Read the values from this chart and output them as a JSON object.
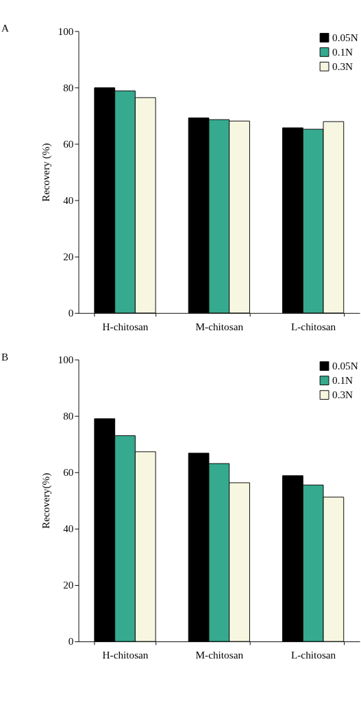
{
  "chart_data": [
    {
      "type": "bar",
      "title": "A",
      "ylabel": "Recovery (%)",
      "categories": [
        "H-chitosan",
        "M-chitosan",
        "L-chitosan"
      ],
      "series": [
        {
          "name": "0.05N",
          "color": "#000000",
          "values": [
            79.9,
            69.2,
            65.7
          ]
        },
        {
          "name": "0.1N",
          "color": "#35aa8f",
          "values": [
            78.8,
            68.6,
            65.2
          ]
        },
        {
          "name": "0.3N",
          "color": "#f7f7e1",
          "values": [
            76.4,
            68.1,
            67.9
          ]
        }
      ],
      "ylim": [
        0,
        100
      ],
      "yticks": [
        0,
        20,
        40,
        60,
        80,
        100
      ],
      "grid": false,
      "legend": "top right"
    },
    {
      "type": "bar",
      "title": "B",
      "ylabel": "Recovery(%)",
      "categories": [
        "H-chitosan",
        "M-chitosan",
        "L-chitosan"
      ],
      "series": [
        {
          "name": "0.05N",
          "color": "#000000",
          "values": [
            79.0,
            66.8,
            58.8
          ]
        },
        {
          "name": "0.1N",
          "color": "#35aa8f",
          "values": [
            73.0,
            63.1,
            55.5
          ]
        },
        {
          "name": "0.3N",
          "color": "#f7f7e1",
          "values": [
            67.3,
            56.3,
            51.2
          ]
        }
      ],
      "ylim": [
        0,
        100
      ],
      "yticks": [
        0,
        20,
        40,
        60,
        80,
        100
      ],
      "grid": false,
      "legend": "top right"
    }
  ]
}
